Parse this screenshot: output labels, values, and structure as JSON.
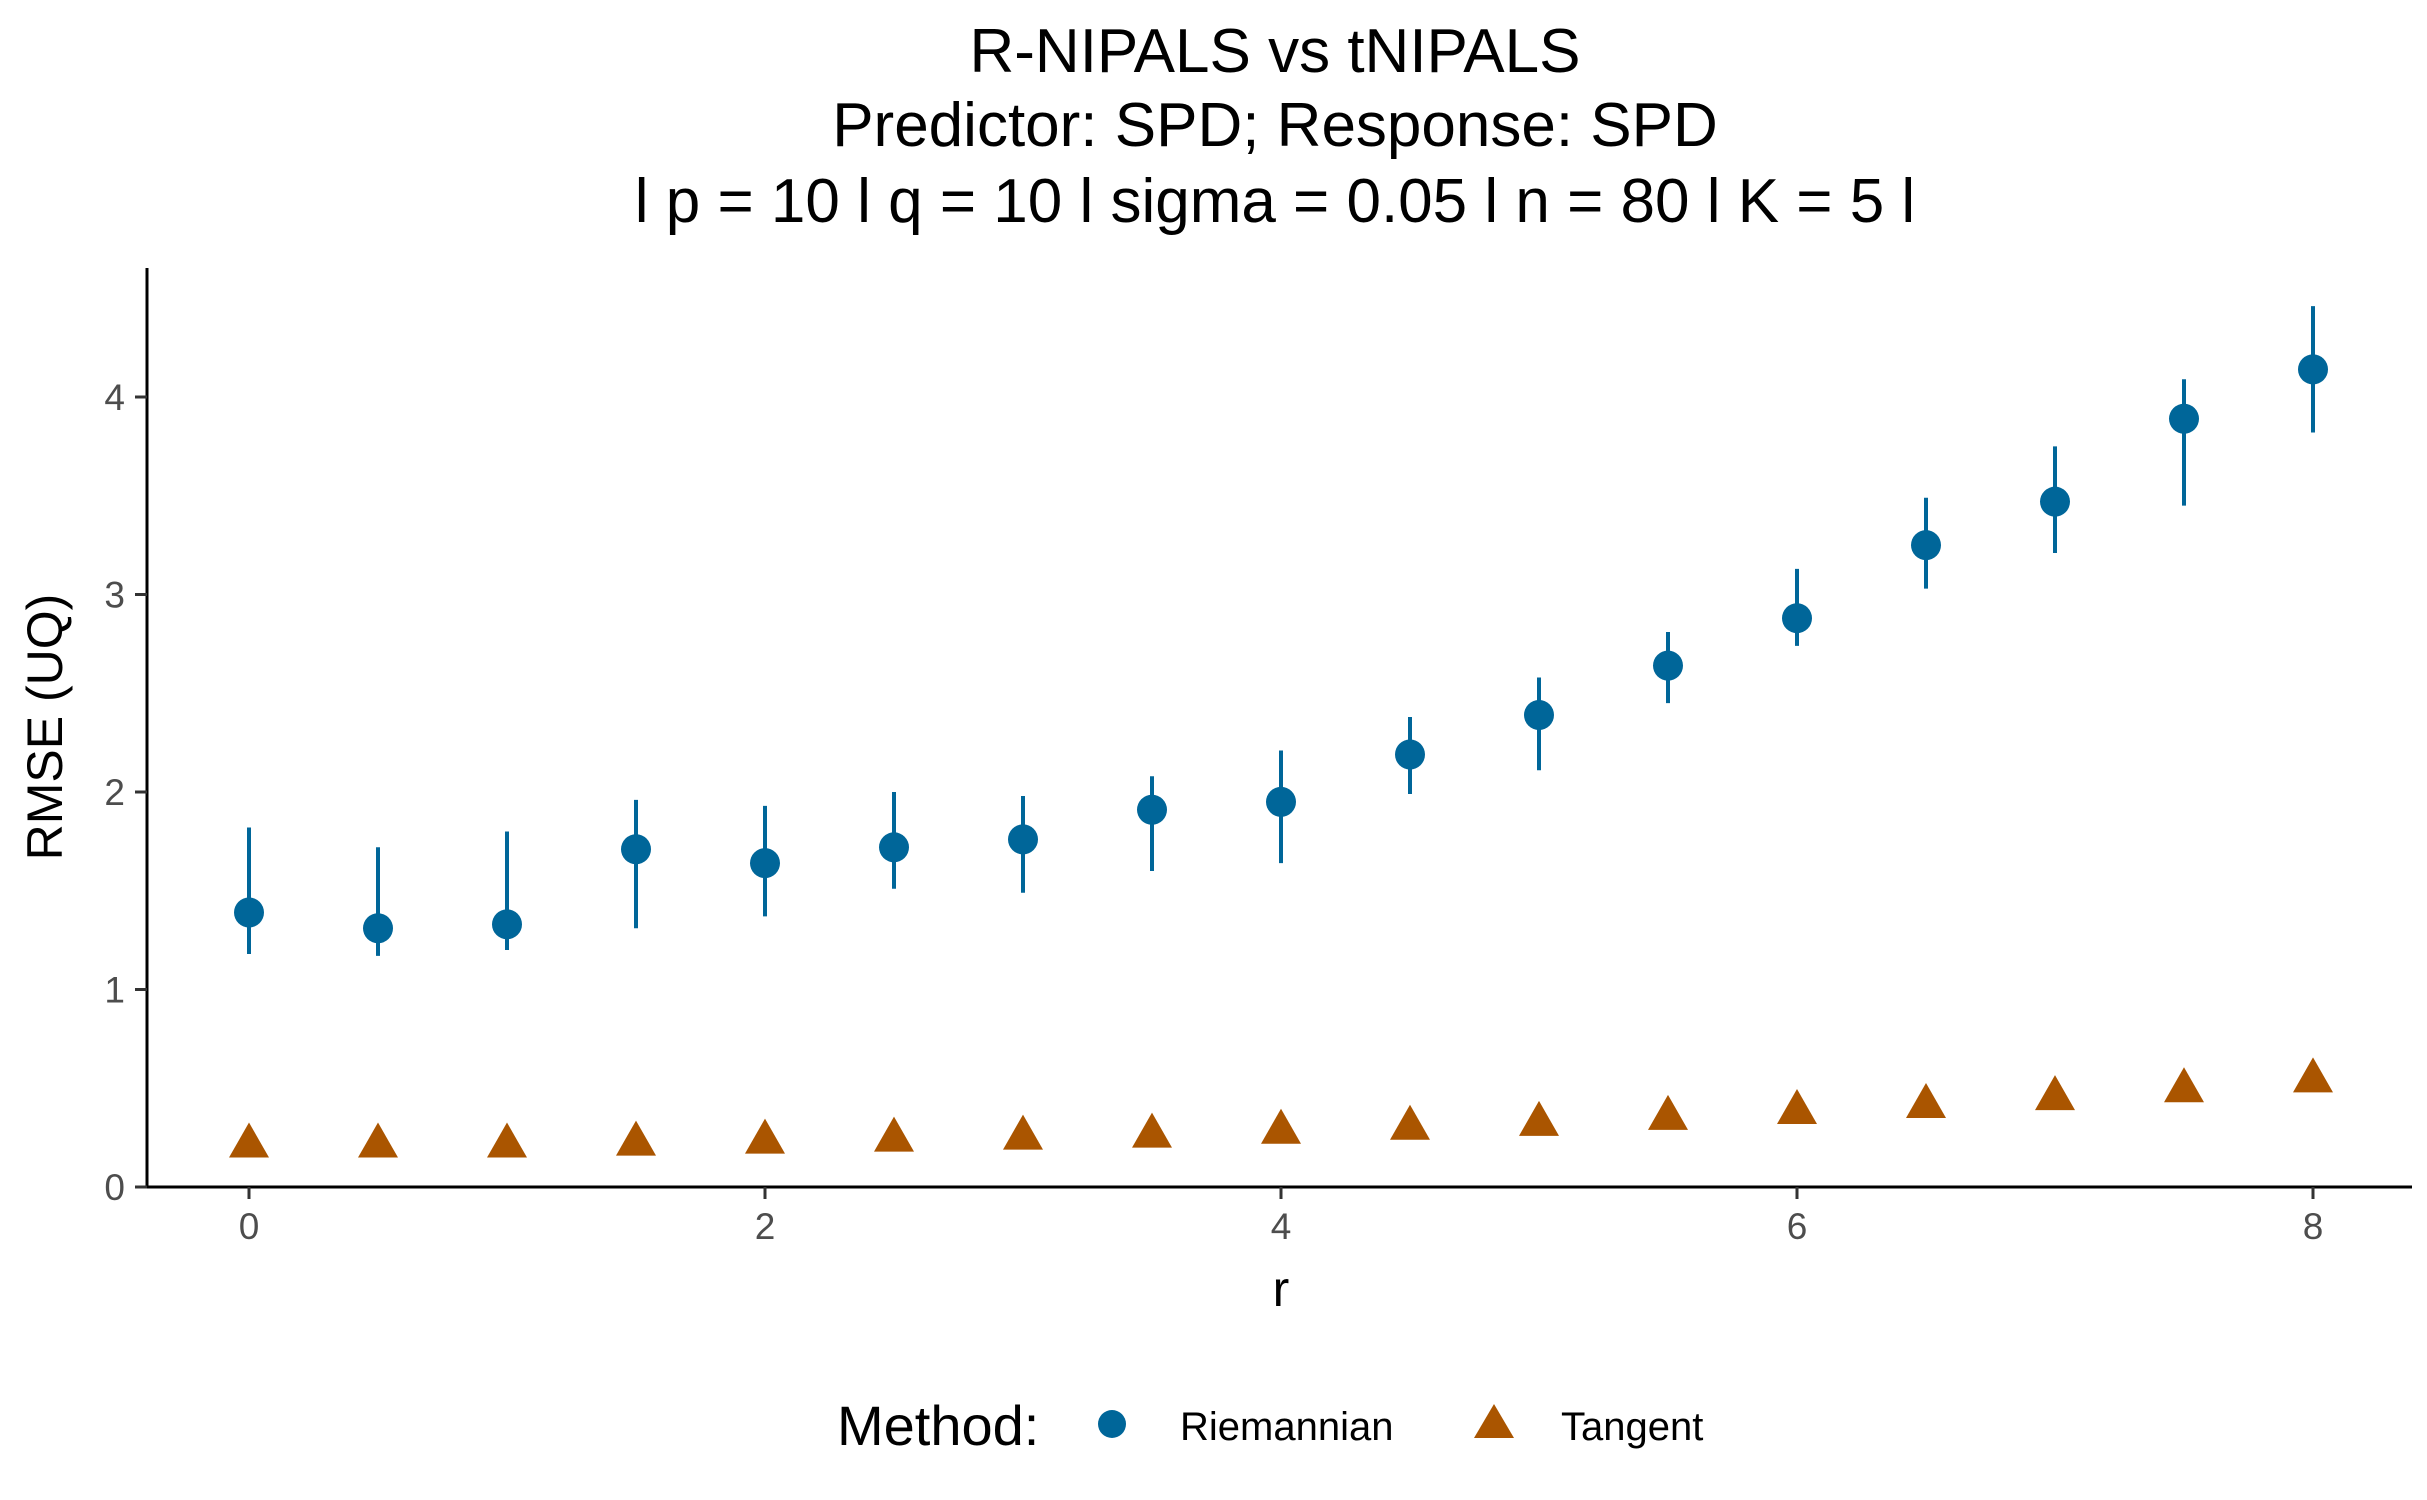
{
  "chart_data": {
    "type": "scatter",
    "title": [
      "R-NIPALS vs tNIPALS",
      "Predictor: SPD; Response: SPD",
      "l p = 10 l q = 10 l sigma = 0.05 l n = 80 l K = 5 l"
    ],
    "xlabel": "r",
    "ylabel": "RMSE (UQ)",
    "xlim": [
      -0.4,
      8.4
    ],
    "ylim": [
      0,
      4.65
    ],
    "xticks": [
      0,
      2,
      4,
      6,
      8
    ],
    "yticks": [
      0,
      1,
      2,
      3,
      4
    ],
    "grid": false,
    "legend": {
      "title": "Method:",
      "position": "bottom"
    },
    "series": [
      {
        "name": "Riemannian",
        "marker": "circle",
        "color": "#006699",
        "x": [
          0,
          0.5,
          1,
          1.5,
          2,
          2.5,
          3,
          3.5,
          4,
          4.5,
          5,
          5.5,
          6,
          6.5,
          7,
          7.5,
          8
        ],
        "y": [
          1.39,
          1.31,
          1.33,
          1.71,
          1.64,
          1.72,
          1.76,
          1.91,
          1.95,
          2.19,
          2.39,
          2.64,
          2.88,
          3.25,
          3.47,
          3.89,
          4.14
        ],
        "lower": [
          1.18,
          1.17,
          1.2,
          1.31,
          1.37,
          1.51,
          1.49,
          1.6,
          1.64,
          1.99,
          2.11,
          2.45,
          2.74,
          3.03,
          3.21,
          3.45,
          3.82
        ],
        "upper": [
          1.82,
          1.72,
          1.8,
          1.96,
          1.93,
          2.0,
          1.98,
          2.08,
          2.21,
          2.38,
          2.58,
          2.81,
          3.13,
          3.49,
          3.75,
          4.09,
          4.46
        ]
      },
      {
        "name": "Tangent",
        "marker": "triangle",
        "color": "#AA5500",
        "x": [
          0,
          0.5,
          1,
          1.5,
          2,
          2.5,
          3,
          3.5,
          4,
          4.5,
          5,
          5.5,
          6,
          6.5,
          7,
          7.5,
          8
        ],
        "y": [
          0.22,
          0.22,
          0.22,
          0.23,
          0.24,
          0.25,
          0.26,
          0.27,
          0.29,
          0.31,
          0.33,
          0.36,
          0.39,
          0.42,
          0.46,
          0.5,
          0.55
        ]
      }
    ]
  }
}
